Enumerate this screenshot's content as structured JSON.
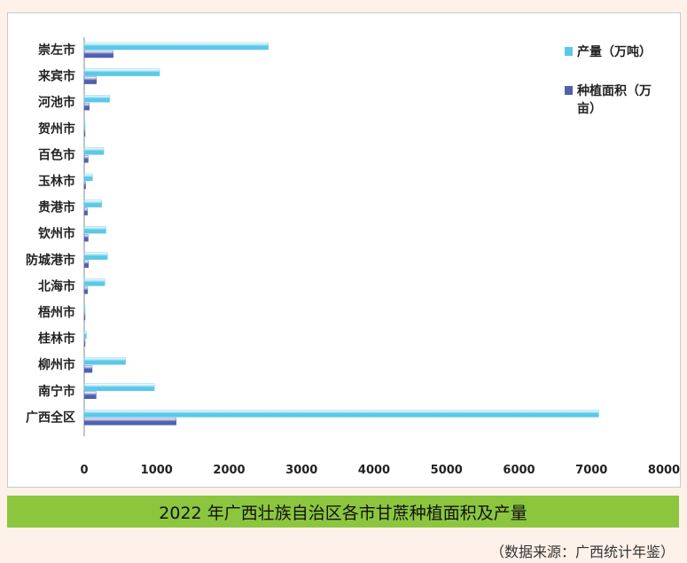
{
  "caption": {
    "title": "2022 年广西壮族自治区各市甘蔗种植面积及产量",
    "source": "（数据来源：广西统计年鉴）"
  },
  "chart_data": {
    "type": "bar",
    "orientation": "horizontal",
    "categories": [
      "崇左市",
      "来宾市",
      "河池市",
      "贺州市",
      "百色市",
      "玉林市",
      "贵港市",
      "钦州市",
      "防城港市",
      "北海市",
      "梧州市",
      "桂林市",
      "柳州市",
      "南宁市",
      "广西全区"
    ],
    "series": [
      {
        "name": "产量（万吨）",
        "color": "#5bc8e8",
        "values": [
          2540,
          1040,
          350,
          5,
          270,
          115,
          240,
          300,
          320,
          285,
          8,
          30,
          570,
          970,
          7100
        ]
      },
      {
        "name": "种植面积（万亩）",
        "color": "#5060b0",
        "values": [
          400,
          170,
          70,
          2,
          55,
          20,
          45,
          55,
          60,
          48,
          2,
          8,
          110,
          165,
          1270
        ]
      }
    ],
    "xlim": [
      0,
      8000
    ],
    "xticks": [
      "0",
      "1000",
      "2000",
      "3000",
      "4000",
      "5000",
      "6000",
      "7000",
      "8000"
    ],
    "legend": {
      "placement": "top-right",
      "items": [
        "产量（万吨）",
        "种植面积（万亩）"
      ]
    }
  }
}
